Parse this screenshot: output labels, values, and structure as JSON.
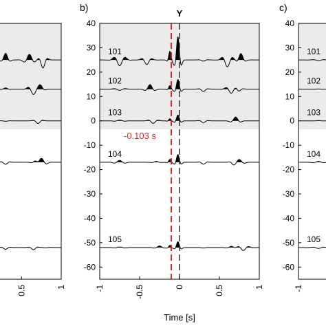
{
  "chart_data": {
    "type": "line",
    "x_axis": {
      "label": "Time [s]",
      "lim": [
        -1,
        1
      ],
      "ticks": [
        -1,
        -0.5,
        0,
        0.5,
        1
      ],
      "tick_labels": [
        "-1",
        "-0.5",
        "0",
        "0.5",
        "1"
      ],
      "left_panel_tick_labels": [
        "0.5",
        "1"
      ]
    },
    "y_axis": {
      "lim": [
        -65,
        40
      ],
      "ticks": [
        40,
        30,
        20,
        10,
        0,
        -10,
        -20,
        -30,
        -40,
        -50,
        -60
      ],
      "tick_labels": [
        "40",
        "30",
        "20",
        "10",
        "0",
        "-10",
        "-20",
        "-30",
        "-40",
        "-50",
        "-60"
      ]
    },
    "shaded_y_range": [
      -1,
      40
    ],
    "shade_color": "#ebebeb",
    "panels": [
      {
        "letter": "b)",
        "peak_label": "Y",
        "peak_time": 0,
        "marker_time": -0.103,
        "marker_label": "-0.103 s"
      },
      {
        "letter": "c)"
      }
    ],
    "marker_color": "#d62728",
    "series": [
      {
        "name": "101",
        "offset": 25,
        "amp": 12
      },
      {
        "name": "102",
        "offset": 13,
        "amp": 5
      },
      {
        "name": "103",
        "offset": 0,
        "amp": 3
      },
      {
        "name": "104",
        "offset": -17,
        "amp": 4
      },
      {
        "name": "105",
        "offset": -52,
        "amp": 3
      }
    ]
  }
}
